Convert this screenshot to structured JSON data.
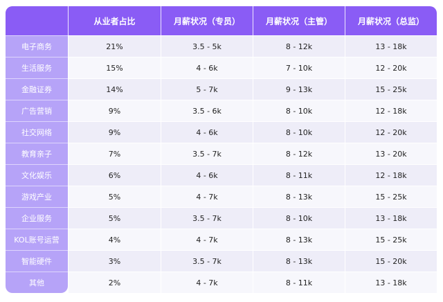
{
  "header": {
    "corner": "",
    "col1": "从业者占比",
    "col2": "月薪状况（专员）",
    "col3": "月薪状况（主管）",
    "col4": "月薪状况（总监）"
  },
  "rows": [
    {
      "label": "电子商务",
      "share": "21%",
      "specialist": "3.5 - 5k",
      "supervisor": "8 - 12k",
      "director": "13 - 18k"
    },
    {
      "label": "生活服务",
      "share": "15%",
      "specialist": "4 - 6k",
      "supervisor": "7 - 10k",
      "director": "12 - 20k"
    },
    {
      "label": "金融证券",
      "share": "14%",
      "specialist": "5 - 7k",
      "supervisor": "9 - 13k",
      "director": "15 - 25k"
    },
    {
      "label": "广告营销",
      "share": "9%",
      "specialist": "3.5 - 6k",
      "supervisor": "8 - 10k",
      "director": "12 - 18k"
    },
    {
      "label": "社交网络",
      "share": "9%",
      "specialist": "4 - 6k",
      "supervisor": "8 - 10k",
      "director": "12 - 20k"
    },
    {
      "label": "教育亲子",
      "share": "7%",
      "specialist": "3.5 - 7k",
      "supervisor": "8 - 12k",
      "director": "13 - 20k"
    },
    {
      "label": "文化娱乐",
      "share": "6%",
      "specialist": "4 - 6k",
      "supervisor": "8 - 11k",
      "director": "12 - 18k"
    },
    {
      "label": "游戏产业",
      "share": "5%",
      "specialist": "4 - 7k",
      "supervisor": "8 - 13k",
      "director": "15 - 25k"
    },
    {
      "label": "企业服务",
      "share": "5%",
      "specialist": "3.5 - 7k",
      "supervisor": "8 - 10k",
      "director": "13 - 18k"
    },
    {
      "label": "KOL账号运营",
      "share": "4%",
      "specialist": "4 - 7k",
      "supervisor": "8 - 13k",
      "director": "15 - 25k"
    },
    {
      "label": "智能硬件",
      "share": "3%",
      "specialist": "3.5 - 7k",
      "supervisor": "8 - 13k",
      "director": "15 - 20k"
    },
    {
      "label": "其他",
      "share": "2%",
      "specialist": "4 - 7k",
      "supervisor": "8 - 11k",
      "director": "13 - 18k"
    }
  ],
  "colors": {
    "header_bg": "#8a5cf5",
    "label_col_bg": "#b6a3f8",
    "row_odd_bg": "#eeedf8",
    "row_even_bg": "#f7f7fc"
  }
}
